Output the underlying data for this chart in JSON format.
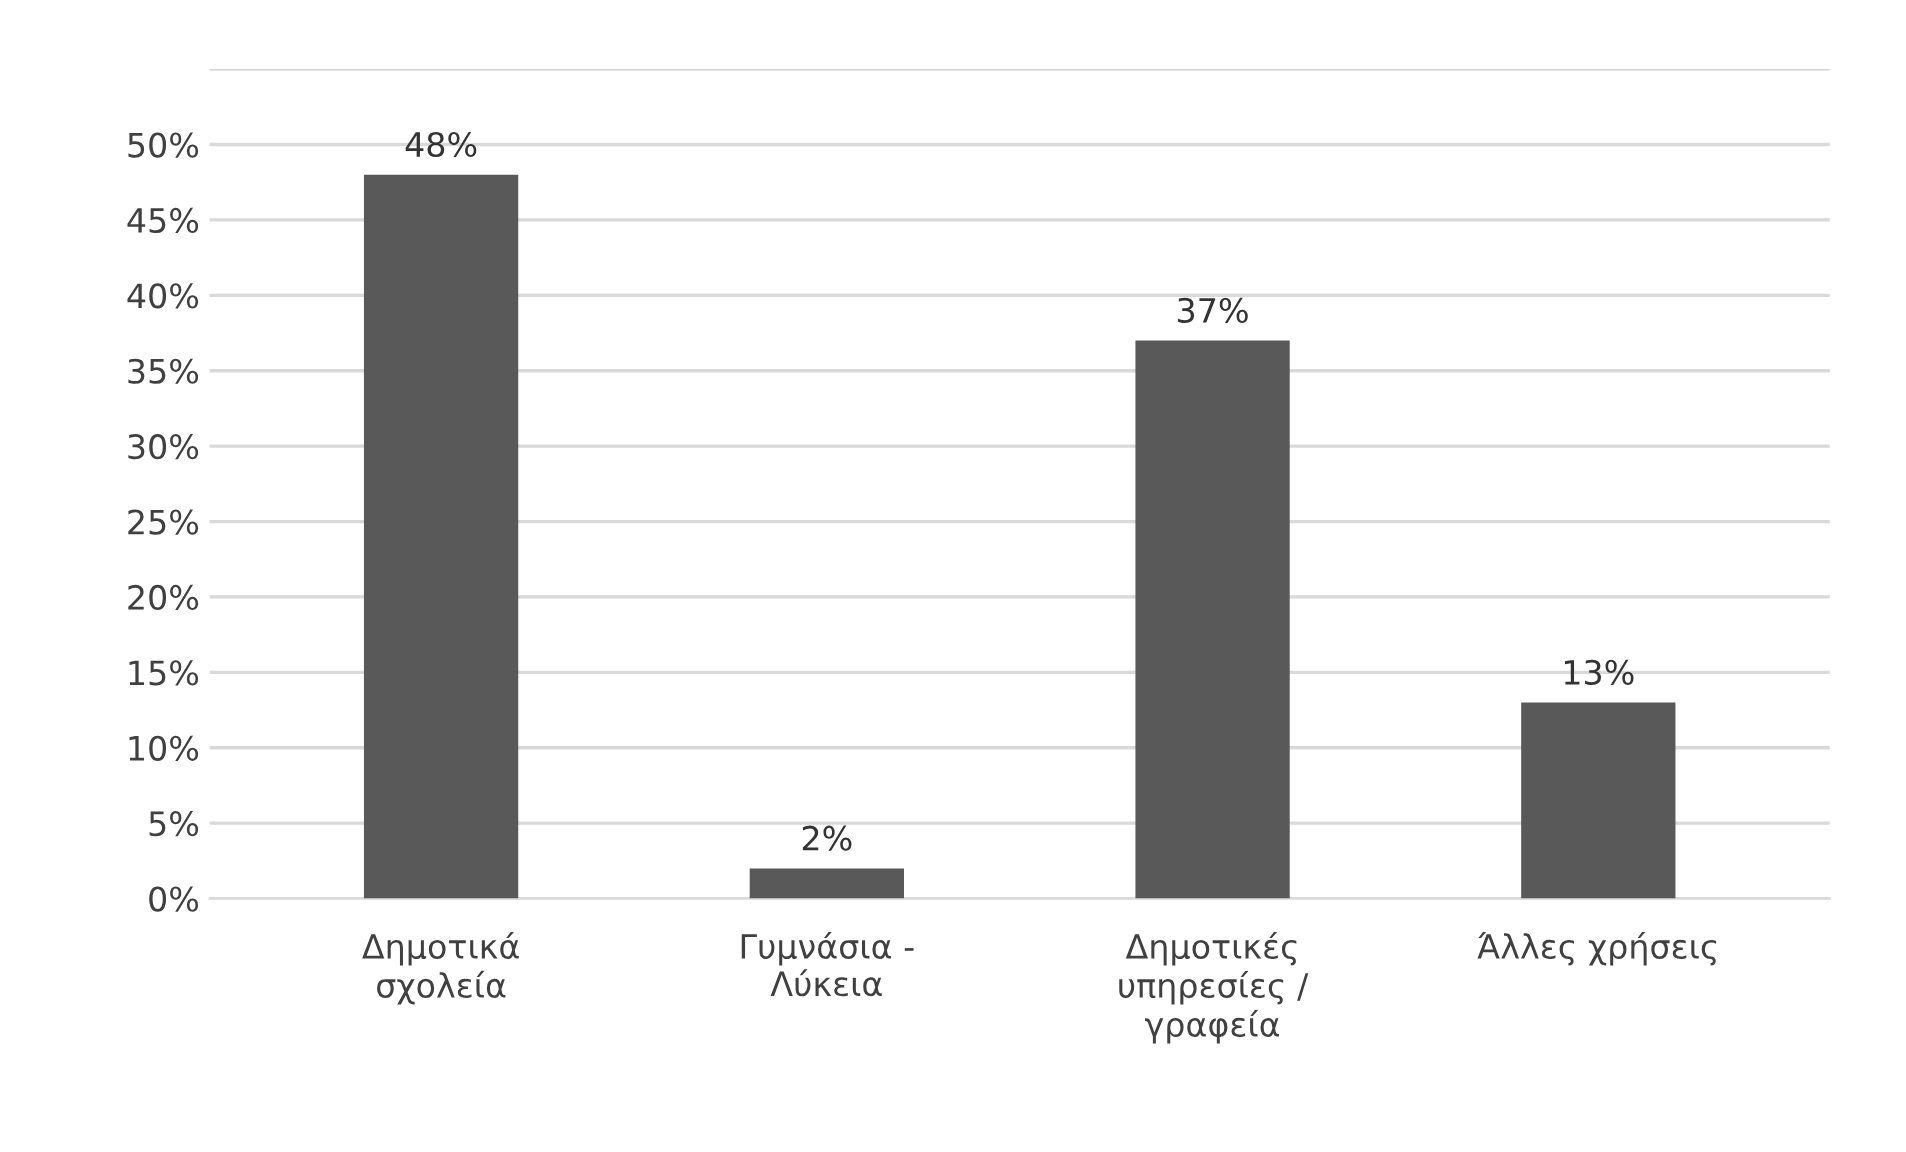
{
  "chart_data": {
    "type": "bar",
    "categories": [
      "Δημοτικά σχολεία",
      "Γυμνάσια - Λύκεια",
      "Δημοτικές υπηρεσίες / γραφεία",
      "Άλλες χρήσεις"
    ],
    "values": [
      48,
      2,
      37,
      13
    ],
    "color": "#595959",
    "value_labels": [
      "48%",
      "2%",
      "37%",
      "13%"
    ],
    "ylim": [
      0,
      55
    ],
    "yticks": [
      {
        "value": 0,
        "label": "0%"
      },
      {
        "value": 5,
        "label": "5%"
      },
      {
        "value": 10,
        "label": "10%"
      },
      {
        "value": 15,
        "label": "15%"
      },
      {
        "value": 20,
        "label": "20%"
      },
      {
        "value": 25,
        "label": "25%"
      },
      {
        "value": 30,
        "label": "30%"
      },
      {
        "value": 35,
        "label": "35%"
      },
      {
        "value": 40,
        "label": "40%"
      },
      {
        "value": 45,
        "label": "45%"
      },
      {
        "value": 50,
        "label": "50%"
      },
      {
        "value": 55,
        "label": null
      }
    ],
    "grid": "y"
  }
}
